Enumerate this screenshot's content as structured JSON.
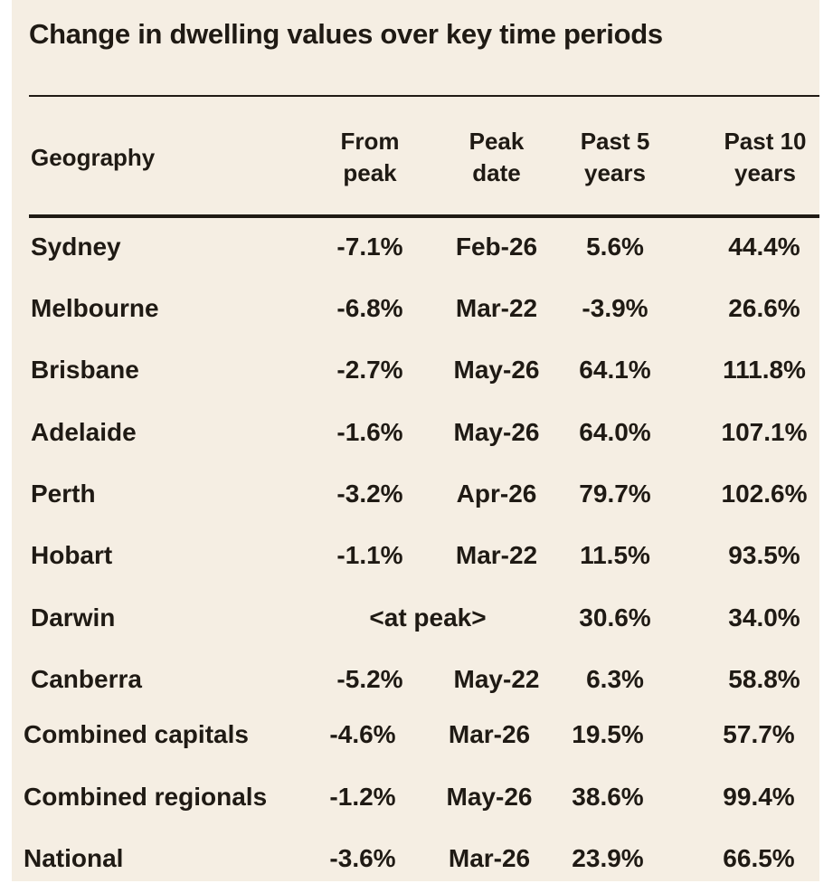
{
  "title": "Change in dwelling values over key time periods",
  "headers": {
    "geography": "Geography",
    "from_peak": [
      "From",
      "peak"
    ],
    "peak_date": [
      "Peak",
      "date"
    ],
    "past5": [
      "Past 5",
      "years"
    ],
    "past10": [
      "Past 10",
      "years"
    ]
  },
  "rows": [
    {
      "geography": "Sydney",
      "from_peak": "-7.1%",
      "peak_date": "Feb-26",
      "past5": "5.6%",
      "past10": "44.4%"
    },
    {
      "geography": "Melbourne",
      "from_peak": "-6.8%",
      "peak_date": "Mar-22",
      "past5": "-3.9%",
      "past10": "26.6%"
    },
    {
      "geography": "Brisbane",
      "from_peak": "-2.7%",
      "peak_date": "May-26",
      "past5": "64.1%",
      "past10": "111.8%"
    },
    {
      "geography": "Adelaide",
      "from_peak": "-1.6%",
      "peak_date": "May-26",
      "past5": "64.0%",
      "past10": "107.1%"
    },
    {
      "geography": "Perth",
      "from_peak": "-3.2%",
      "peak_date": "Apr-26",
      "past5": "79.7%",
      "past10": "102.6%"
    },
    {
      "geography": "Hobart",
      "from_peak": "-1.1%",
      "peak_date": "Mar-22",
      "past5": "11.5%",
      "past10": "93.5%"
    },
    {
      "geography": "Darwin",
      "at_peak": "<at peak>",
      "past5": "30.6%",
      "past10": "34.0%"
    },
    {
      "geography": "Canberra",
      "from_peak": "-5.2%",
      "peak_date": "May-22",
      "past5": "6.3%",
      "past10": "58.8%"
    },
    {
      "geography": "Combined capitals",
      "from_peak": "-4.6%",
      "peak_date": "Mar-26",
      "past5": "19.5%",
      "past10": "57.7%"
    },
    {
      "geography": "Combined regionals",
      "from_peak": "-1.2%",
      "peak_date": "May-26",
      "past5": "38.6%",
      "past10": "99.4%"
    },
    {
      "geography": "National",
      "from_peak": "-3.6%",
      "peak_date": "Mar-26",
      "past5": "23.9%",
      "past10": "66.5%"
    }
  ],
  "colors": {
    "background": "#f5eee3",
    "text": "#1f1a14"
  }
}
